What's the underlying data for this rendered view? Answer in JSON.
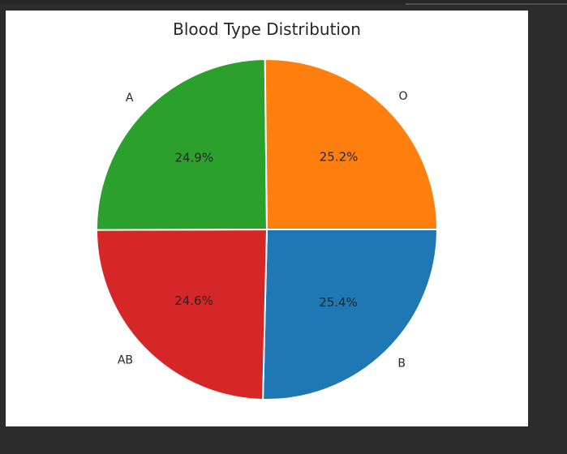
{
  "chart_data": {
    "type": "pie",
    "title": "Blood Type Distribution",
    "labels": [
      "B",
      "AB",
      "A",
      "O"
    ],
    "values": [
      25.4,
      24.6,
      24.9,
      25.2
    ],
    "percent_labels": [
      "25.4%",
      "24.6%",
      "24.9%",
      "25.2%"
    ],
    "colors": [
      "#1f77b4",
      "#d62728",
      "#2ca02c",
      "#ff7f0e"
    ],
    "start_angle": 0,
    "direction": "clockwise",
    "legend": "none"
  }
}
